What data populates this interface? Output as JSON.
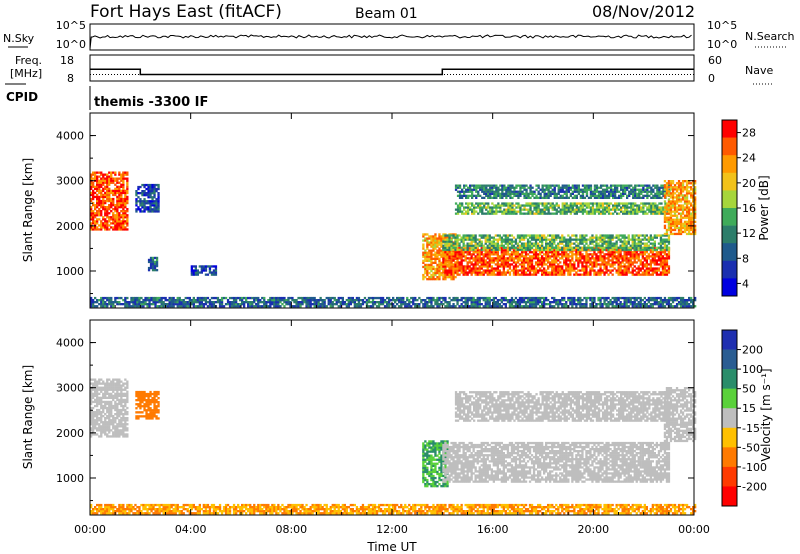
{
  "header": {
    "station": "Fort Hays East (fitACF)",
    "beam": "Beam 01",
    "date": "08/Nov/2012"
  },
  "nsky_panel": {
    "left_label": "N.Sky",
    "right_label": "N.Search",
    "left_ticks": [
      "10^5",
      "10^0"
    ],
    "right_ticks": [
      "10^5",
      "10^0"
    ]
  },
  "freq_panel": {
    "left_label_1": "Freq.",
    "left_label_2": "[MHz]",
    "right_label": "Nave",
    "left_ticks": [
      "18",
      "8"
    ],
    "right_ticks": [
      "60",
      "0"
    ]
  },
  "cpid_panel": {
    "label": "CPID",
    "program": "themis -3300 IF"
  },
  "x_axis": {
    "label": "Time UT",
    "ticks": [
      "00:00",
      "04:00",
      "08:00",
      "12:00",
      "16:00",
      "20:00",
      "00:00"
    ]
  },
  "power_panel": {
    "ylabel": "Slant Range [km]",
    "yticks": [
      "4000",
      "3000",
      "2000",
      "1000"
    ],
    "cbar_label": "Power [dB]",
    "cbar_ticks": [
      "28",
      "24",
      "20",
      "16",
      "12",
      "8",
      "4"
    ],
    "cbar_colors": [
      "#ff0000",
      "#ff5a00",
      "#ff9a00",
      "#f2c21a",
      "#a6d63c",
      "#3fab5a",
      "#2c7d6a",
      "#1f5a8c",
      "#1a2fb0",
      "#0000e0"
    ]
  },
  "velocity_panel": {
    "ylabel": "Slant Range [km]",
    "yticks": [
      "4000",
      "3000",
      "2000",
      "1000"
    ],
    "cbar_label": "Velocity [m s⁻¹]",
    "cbar_ticks": [
      "200",
      "100",
      "50",
      "15",
      "-15",
      "-50",
      "-100",
      "-200"
    ],
    "cbar_colors": [
      "#1f2fb0",
      "#2a5d92",
      "#2a8d6a",
      "#5ad13a",
      "#bebebe",
      "#ffc000",
      "#ff7a00",
      "#ff3a00",
      "#ff0000"
    ]
  },
  "chart_data": {
    "type": "heatmap",
    "x_range_hours": [
      0,
      24
    ],
    "y_range_km": [
      180,
      4500
    ],
    "freq_steps_mhz": [
      {
        "from_h": 0.0,
        "to_h": 2.0,
        "value": 12.5
      },
      {
        "from_h": 2.0,
        "to_h": 14.0,
        "value": 10.5
      },
      {
        "from_h": 14.0,
        "to_h": 24.0,
        "value": 12.5
      }
    ],
    "nave_level": 0.25,
    "power_regions": [
      {
        "t0": 0.0,
        "t1": 1.5,
        "r0": 1900,
        "r1": 3200,
        "db": 26
      },
      {
        "t0": 1.8,
        "t1": 2.7,
        "r0": 2300,
        "r1": 2900,
        "db": 6
      },
      {
        "t0": 13.2,
        "t1": 14.5,
        "r0": 800,
        "r1": 1800,
        "db": 22
      },
      {
        "t0": 14.0,
        "t1": 23.0,
        "r0": 900,
        "r1": 1500,
        "db": 26
      },
      {
        "t0": 14.0,
        "t1": 23.0,
        "r0": 1450,
        "r1": 1800,
        "db": 14
      },
      {
        "t0": 14.5,
        "t1": 23.0,
        "r0": 2250,
        "r1": 2500,
        "db": 14
      },
      {
        "t0": 14.5,
        "t1": 23.0,
        "r0": 2600,
        "r1": 2900,
        "db": 10
      },
      {
        "t0": 22.8,
        "t1": 24.0,
        "r0": 1800,
        "r1": 3000,
        "db": 22
      },
      {
        "t0": 2.3,
        "t1": 2.7,
        "r0": 1000,
        "r1": 1300,
        "db": 8
      },
      {
        "t0": 4.0,
        "t1": 5.0,
        "r0": 900,
        "r1": 1100,
        "db": 6
      },
      {
        "t0": 0.0,
        "t1": 24.0,
        "r0": 200,
        "r1": 400,
        "db": 8
      }
    ],
    "velocity_regions": [
      {
        "t0": 0.0,
        "t1": 1.5,
        "r0": 1900,
        "r1": 3200,
        "v": 0
      },
      {
        "t0": 1.8,
        "t1": 2.7,
        "r0": 2300,
        "r1": 2900,
        "v": -50
      },
      {
        "t0": 13.2,
        "t1": 14.2,
        "r0": 800,
        "r1": 1800,
        "v": 30
      },
      {
        "t0": 14.0,
        "t1": 23.0,
        "r0": 900,
        "r1": 1800,
        "v": 0
      },
      {
        "t0": 14.5,
        "t1": 23.0,
        "r0": 2250,
        "r1": 2900,
        "v": 0
      },
      {
        "t0": 22.8,
        "t1": 24.0,
        "r0": 1800,
        "r1": 3000,
        "v": 0
      },
      {
        "t0": 0.0,
        "t1": 24.0,
        "r0": 200,
        "r1": 400,
        "v": -30
      }
    ]
  }
}
